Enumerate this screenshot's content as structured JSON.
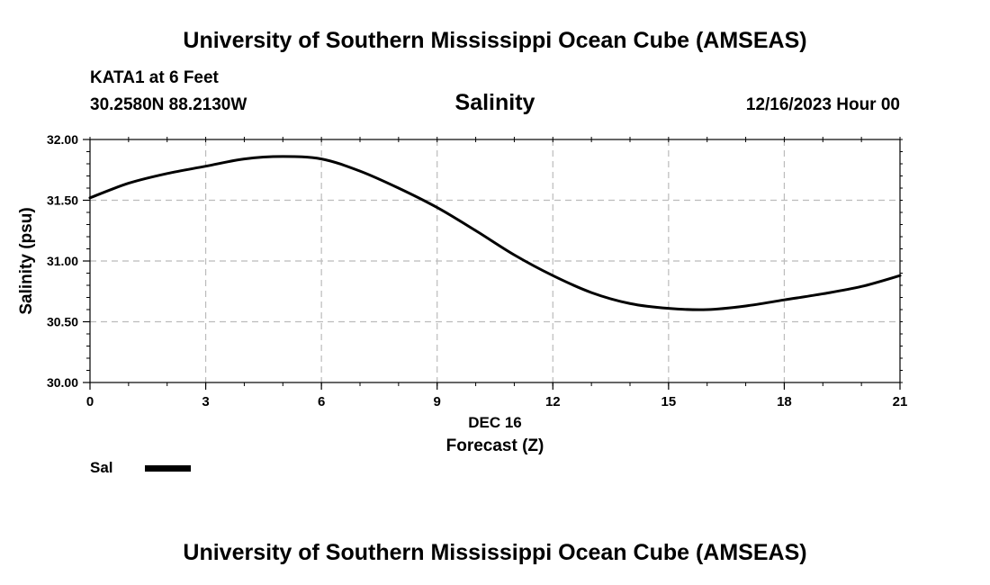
{
  "header": {
    "top_title": "University of Southern Mississippi Ocean Cube (AMSEAS)",
    "station": "KATA1 at 6 Feet",
    "coords": "30.2580N  88.2130W",
    "datetime": "12/16/2023 Hour 00",
    "bottom_title": "University of Southern Mississippi Ocean Cube (AMSEAS)"
  },
  "chart_data": {
    "type": "line",
    "title": "Salinity",
    "xlabel": "Forecast (Z)",
    "x_date_label": "DEC 16",
    "ylabel": "Salinity (psu)",
    "xlim": [
      0,
      21
    ],
    "ylim": [
      30.0,
      32.0
    ],
    "x_ticks": [
      0,
      3,
      6,
      9,
      12,
      15,
      18,
      21
    ],
    "y_ticks": [
      30.0,
      30.5,
      31.0,
      31.5,
      32.0
    ],
    "y_tick_labels": [
      "30.00",
      "30.50",
      "31.00",
      "31.50",
      "32.00"
    ],
    "grid": true,
    "legend_position": "bottom-left",
    "series": [
      {
        "name": "Sal",
        "color": "#000000",
        "x": [
          0,
          1,
          2,
          3,
          4,
          5,
          6,
          7,
          8,
          9,
          10,
          11,
          12,
          13,
          14,
          15,
          16,
          17,
          18,
          19,
          20,
          21
        ],
        "values": [
          31.52,
          31.64,
          31.72,
          31.78,
          31.84,
          31.86,
          31.84,
          31.74,
          31.6,
          31.44,
          31.25,
          31.05,
          30.88,
          30.74,
          30.65,
          30.61,
          30.6,
          30.63,
          30.68,
          30.73,
          30.79,
          30.88
        ]
      }
    ]
  }
}
